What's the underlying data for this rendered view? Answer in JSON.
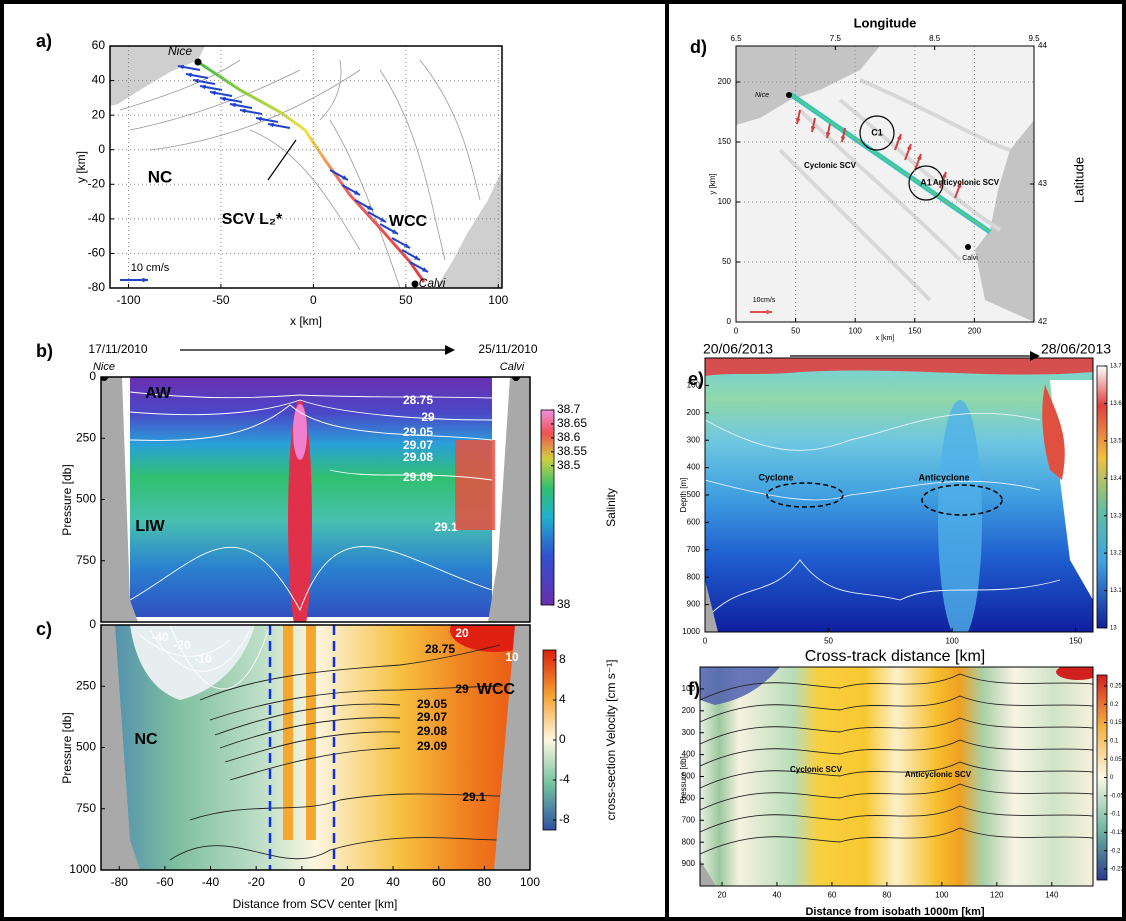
{
  "chart_data": [
    {
      "panel": "a)",
      "type": "map",
      "xlabel": "x [km]",
      "ylabel": "y [km]",
      "xlim": [
        -110,
        102
      ],
      "ylim": [
        -80,
        60
      ],
      "xticks": [
        -100,
        -50,
        0,
        50,
        100
      ],
      "yticks": [
        -80,
        -60,
        -40,
        -20,
        0,
        20,
        40,
        60
      ],
      "grid": true,
      "annotations": [
        "Nice",
        "NC",
        "SCV L₂*",
        "WCC",
        "10 cm/s",
        "Calvi"
      ]
    },
    {
      "panel": "b)",
      "type": "section",
      "ylabel": "Pressure [db]",
      "xlim": [
        -88,
        100
      ],
      "ylim": [
        0,
        1000
      ],
      "yticks": [
        0,
        250,
        500,
        750
      ],
      "colorbar": {
        "label": "Salinity",
        "lim": [
          38,
          38.7
        ],
        "ticks": [
          38,
          38.5,
          38.55,
          38.6,
          38.65,
          38.7
        ]
      },
      "annotations": [
        "17/11/2010",
        "25/11/2010",
        "Nice",
        "Calvi",
        "AW",
        "LIW",
        "28.75",
        "29",
        "29.05",
        "29.07",
        "29.08",
        "29.09",
        "29.1"
      ]
    },
    {
      "panel": "c)",
      "type": "section",
      "xlabel": "Distance from SCV center [km]",
      "ylabel": "Pressure [db]",
      "xlim": [
        -88,
        100
      ],
      "ylim": [
        0,
        1000
      ],
      "xticks": [
        -80,
        -60,
        -40,
        -20,
        0,
        20,
        40,
        60,
        80,
        100
      ],
      "yticks": [
        0,
        250,
        500,
        750,
        1000
      ],
      "colorbar": {
        "label": "cross-section Velocity [cm s⁻¹]",
        "lim": [
          -9,
          9
        ],
        "ticks": [
          -8,
          -4,
          0,
          4,
          8
        ]
      },
      "annotations": [
        "-40",
        "-20",
        "-10",
        "20",
        "10",
        "28.75",
        "29",
        "29.05",
        "29.07",
        "29.08",
        "29.09",
        "29.1",
        "WCC",
        "NC"
      ]
    },
    {
      "panel": "d)",
      "type": "map",
      "xlabel": "x [km]",
      "ylabel": "y [km]",
      "x2label": "Longitude",
      "y2label": "Latitude",
      "xlim": [
        0,
        250
      ],
      "ylim": [
        0,
        230
      ],
      "xticks": [
        0,
        50,
        100,
        150,
        200
      ],
      "yticks": [
        0,
        50,
        100,
        150,
        200
      ],
      "x2lim": [
        6.5,
        9.5
      ],
      "x2ticks": [
        6.5,
        7.5,
        8.5,
        9.5
      ],
      "y2lim": [
        42,
        44
      ],
      "y2ticks": [
        42,
        43,
        44
      ],
      "grid": true,
      "annotations": [
        "Nice",
        "C1",
        "A1",
        "Cyclonic SCV",
        "Anticyclonic SCV",
        "Calvi",
        "10cm/s"
      ]
    },
    {
      "panel": "e)",
      "type": "section",
      "xlabel": "Cross-track distance [km]",
      "ylabel": "Depth [m]",
      "xlim": [
        0,
        157
      ],
      "ylim": [
        0,
        1000
      ],
      "xticks": [
        0,
        50,
        100,
        150
      ],
      "yticks": [
        100,
        200,
        300,
        400,
        500,
        600,
        700,
        800,
        900,
        1000
      ],
      "colorbar": {
        "lim": [
          13,
          13.7
        ],
        "ticks": [
          13,
          13.1,
          13.2,
          13.3,
          13.4,
          13.5,
          13.6,
          13.7
        ]
      },
      "annotations": [
        "20/06/2013",
        "28/06/2013",
        "Cyclone",
        "Anticyclone"
      ]
    },
    {
      "panel": "f)",
      "type": "section",
      "xlabel": "Distance from isobath 1000m [km]",
      "ylabel": "Pressure [db]",
      "xlim": [
        12,
        155
      ],
      "ylim": [
        0,
        1000
      ],
      "xticks": [
        20,
        40,
        60,
        80,
        100,
        120,
        140
      ],
      "yticks": [
        100,
        200,
        300,
        400,
        500,
        600,
        700,
        800,
        900
      ],
      "colorbar": {
        "lim": [
          -0.28,
          0.28
        ],
        "ticks": [
          -0.25,
          -0.2,
          -0.15,
          -0.1,
          -0.05,
          0,
          0.05,
          0.1,
          0.15,
          0.2,
          0.25
        ]
      },
      "annotations": [
        "Cyclonic SCV",
        "Anticyclonic SCV"
      ]
    }
  ]
}
